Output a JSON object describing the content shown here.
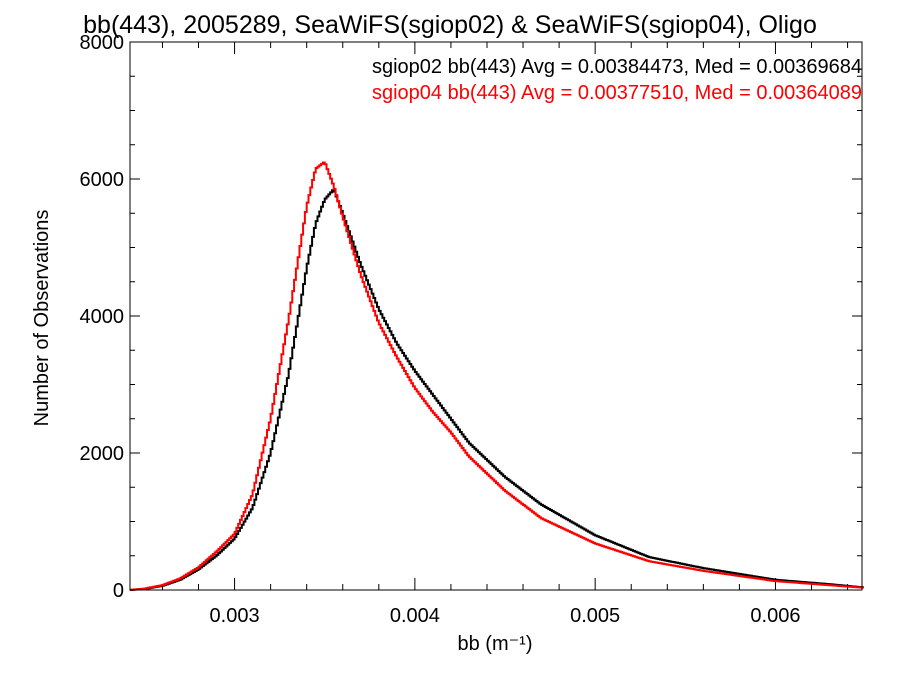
{
  "chart_data": {
    "type": "line",
    "title": "bb(443), 2005289, SeaWiFS(sgiop02) & SeaWiFS(sgiop04), Oligo",
    "xlabel": "bb (m⁻¹)",
    "ylabel": "Number of Observations",
    "xlim": [
      0.00242,
      0.00648
    ],
    "ylim": [
      0,
      8000
    ],
    "xticks": [
      0.003,
      0.004,
      0.005,
      0.006
    ],
    "xtick_labels": [
      "0.003",
      "0.004",
      "0.005",
      "0.006"
    ],
    "yticks": [
      0,
      2000,
      4000,
      6000,
      8000
    ],
    "ytick_labels": [
      "0",
      "2000",
      "4000",
      "6000",
      "8000"
    ],
    "grid": false,
    "legend_placement": "top-right",
    "series": [
      {
        "name": "sgiop02 bb(443) Avg = 0.00384473, Med = 0.00369684",
        "color": "#000000",
        "x": [
          0.00242,
          0.0025,
          0.0026,
          0.0027,
          0.0028,
          0.0029,
          0.003,
          0.0031,
          0.0032,
          0.0033,
          0.0034,
          0.00345,
          0.0035,
          0.00355,
          0.0036,
          0.0037,
          0.0038,
          0.0039,
          0.004,
          0.0041,
          0.0042,
          0.0043,
          0.0045,
          0.0047,
          0.005,
          0.0053,
          0.0056,
          0.006,
          0.0063,
          0.00648
        ],
        "y": [
          0,
          15,
          60,
          150,
          300,
          500,
          750,
          1200,
          2000,
          3150,
          4700,
          5350,
          5700,
          5850,
          5500,
          4750,
          4100,
          3600,
          3200,
          2850,
          2500,
          2150,
          1650,
          1250,
          800,
          480,
          320,
          150,
          85,
          40
        ]
      },
      {
        "name": "sgiop04 bb(443) Avg = 0.00377510, Med = 0.00364089",
        "color": "#ff0000",
        "x": [
          0.00242,
          0.0025,
          0.0026,
          0.0027,
          0.0028,
          0.0029,
          0.003,
          0.0031,
          0.0032,
          0.0033,
          0.0034,
          0.00345,
          0.0035,
          0.00355,
          0.0036,
          0.0037,
          0.0038,
          0.0039,
          0.004,
          0.0041,
          0.0042,
          0.0043,
          0.0045,
          0.0047,
          0.005,
          0.0053,
          0.0056,
          0.006,
          0.0063,
          0.00648
        ],
        "y": [
          0,
          20,
          70,
          170,
          330,
          560,
          820,
          1400,
          2500,
          3950,
          5600,
          6150,
          6250,
          5900,
          5450,
          4600,
          3900,
          3400,
          2950,
          2600,
          2300,
          1950,
          1450,
          1050,
          680,
          420,
          280,
          130,
          70,
          35
        ]
      }
    ]
  }
}
